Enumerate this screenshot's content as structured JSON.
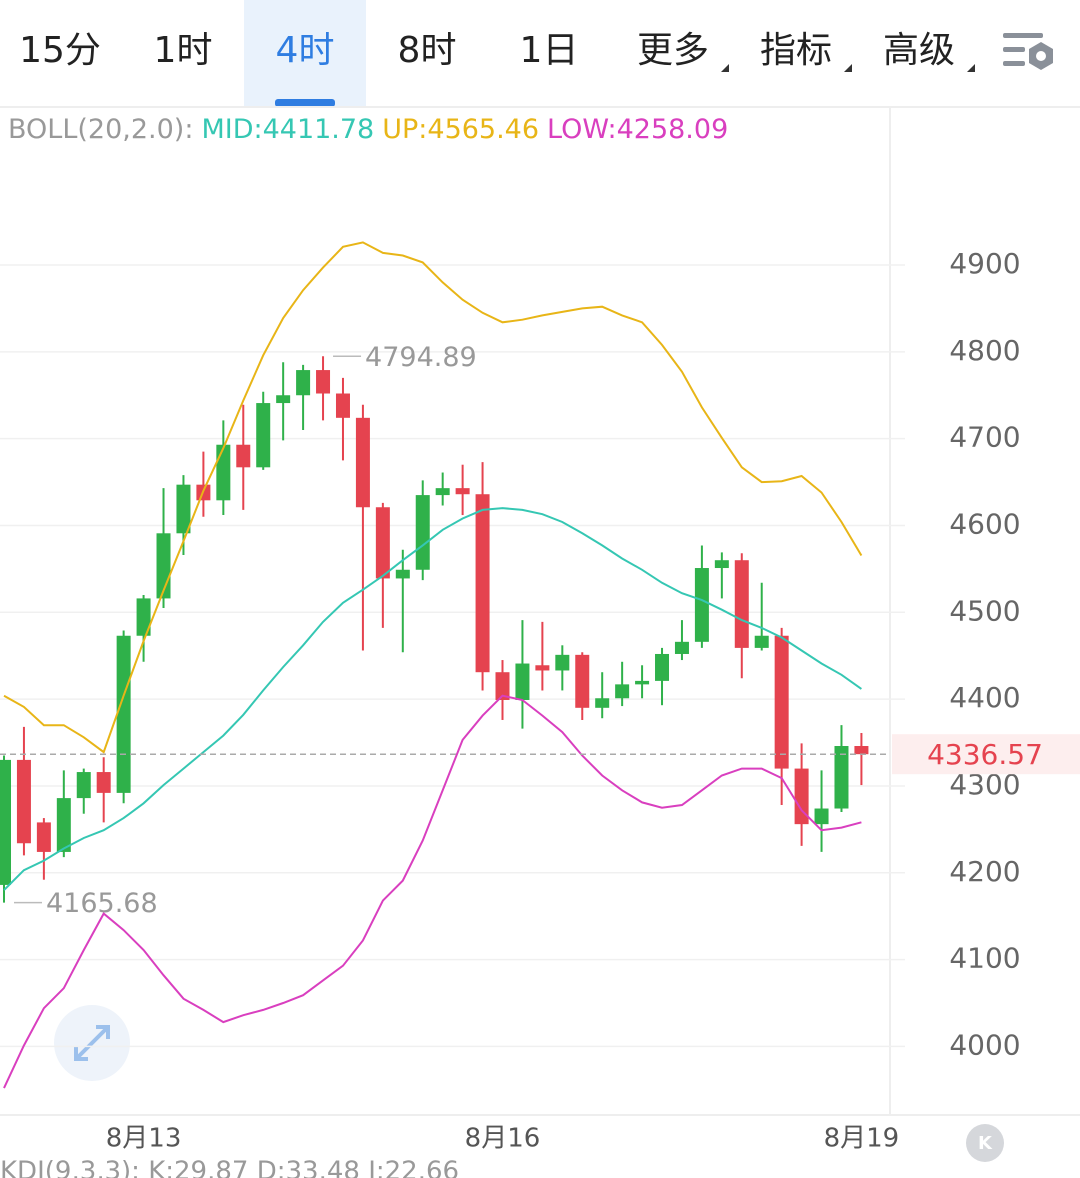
{
  "tabs": [
    "15分",
    "1时",
    "4时",
    "8时",
    "1日",
    "更多",
    "指标",
    "高级"
  ],
  "selected_tab": 2,
  "chart_data": {
    "type": "candlestick",
    "indicator": "BOLL(20,2.0):",
    "footer_indicator": "KDJ(9,3,3): K:29.87 D:33.48 J:22.66",
    "categories": [
      null,
      null,
      null,
      null,
      null,
      null,
      null,
      "8月13",
      null,
      null,
      null,
      null,
      null,
      null,
      null,
      null,
      null,
      null,
      null,
      null,
      null,
      null,
      null,
      null,
      null,
      "8月16",
      null,
      null,
      null,
      null,
      null,
      null,
      null,
      null,
      null,
      null,
      null,
      null,
      null,
      null,
      null,
      null,
      null,
      "8月19"
    ],
    "open": [
      4186,
      4330,
      4258,
      4224,
      4286,
      4316,
      4292,
      4473,
      4516,
      4591,
      4647,
      4629,
      4693,
      4667,
      4741,
      4750,
      4779,
      4752,
      4724,
      4621,
      4539,
      4549,
      4635,
      4643,
      4636,
      4431,
      4399,
      4439,
      4433,
      4451,
      4390,
      4401,
      4417,
      4421,
      4452,
      4466,
      4551,
      4560,
      4459,
      4473,
      4320,
      4256,
      4274,
      4346
    ],
    "high": [
      4335,
      4368,
      4263,
      4318,
      4320,
      4333,
      4479,
      4520,
      4643,
      4658,
      4685,
      4721,
      4739,
      4754,
      4788,
      4785,
      4794.89,
      4770,
      4739,
      4626,
      4572,
      4652,
      4661,
      4670,
      4673,
      4445,
      4491,
      4489,
      4462,
      4454,
      4431,
      4443,
      4439,
      4459,
      4491,
      4577,
      4569,
      4568,
      4534,
      4482,
      4349,
      4318,
      4370,
      4361
    ],
    "low": [
      4165.68,
      4220,
      4192,
      4218,
      4268,
      4258,
      4280,
      4443,
      4505,
      4566,
      4610,
      4612,
      4618,
      4664,
      4698,
      4710,
      4721,
      4675,
      4456,
      4482,
      4454,
      4537,
      4623,
      4612,
      4410,
      4376,
      4366,
      4410,
      4410,
      4376,
      4378,
      4392,
      4401,
      4393,
      4445,
      4459,
      4516,
      4424,
      4456,
      4278,
      4231,
      4224,
      4270,
      4301
    ],
    "close": [
      4330,
      4234,
      4224,
      4286,
      4316,
      4292,
      4473,
      4516,
      4591,
      4647,
      4629,
      4693,
      4667,
      4741,
      4750,
      4779,
      4752,
      4724,
      4621,
      4539,
      4549,
      4635,
      4643,
      4636,
      4431,
      4399,
      4441,
      4433,
      4451,
      4390,
      4401,
      4417,
      4421,
      4452,
      4466,
      4551,
      4560,
      4459,
      4473,
      4320,
      4256,
      4274,
      4346,
      4336.57
    ],
    "up_color": "#2fb14a",
    "down_color": "#e5434f",
    "series": [
      {
        "name": "MID:4411.78",
        "color": "#35c7b3",
        "values": [
          4180,
          4203,
          4214,
          4228,
          4240,
          4249,
          4263,
          4280,
          4301,
          4320,
          4339,
          4358,
          4382,
          4410,
          4437,
          4462,
          4489,
          4511,
          4526,
          4542,
          4560,
          4577,
          4595,
          4608,
          4618,
          4620,
          4618,
          4613,
          4604,
          4591,
          4577,
          4562,
          4549,
          4534,
          4522,
          4514,
          4503,
          4491,
          4482,
          4471,
          4456,
          4441,
          4428,
          4411.78
        ]
      },
      {
        "name": "UP:4565.46",
        "color": "#e8b517",
        "values": [
          4404,
          4391,
          4370,
          4370,
          4356,
          4339,
          4404,
          4467,
          4525,
          4582,
          4640,
          4689,
          4744,
          4796,
          4839,
          4871,
          4897,
          4921,
          4926,
          4914,
          4911,
          4903,
          4880,
          4860,
          4845,
          4834,
          4837,
          4842,
          4846,
          4850,
          4852,
          4842,
          4834,
          4808,
          4777,
          4736,
          4701,
          4667,
          4650,
          4651,
          4657,
          4638,
          4604,
          4565.46
        ]
      },
      {
        "name": "LOW:4258.09",
        "color": "#d93fbf",
        "values": [
          3952,
          4001,
          4044,
          4067,
          4111,
          4153,
          4134,
          4111,
          4082,
          4055,
          4042,
          4028,
          4036,
          4042,
          4050,
          4059,
          4076,
          4093,
          4122,
          4168,
          4191,
          4237,
          4295,
          4353,
          4381,
          4404,
          4399,
          4381,
          4362,
          4335,
          4312,
          4295,
          4281,
          4275,
          4278,
          4295,
          4312,
          4320,
          4320,
          4309,
          4272,
          4249,
          4252,
          4258.09
        ]
      }
    ],
    "annotations": [
      {
        "value": 4794.89
      },
      {
        "value": 4165.68
      }
    ],
    "last_price": 4336.57,
    "ylim": [
      3921,
      5082
    ],
    "yticks": [
      4000,
      4100,
      4200,
      4300,
      4400,
      4500,
      4600,
      4700,
      4800,
      4900
    ],
    "grid": true
  }
}
